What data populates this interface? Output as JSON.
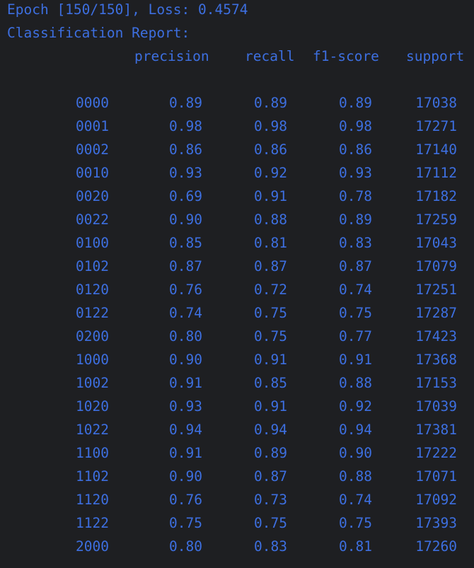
{
  "console": {
    "epoch_line": "Epoch [150/150], Loss: 0.4574",
    "report_title": "Classification Report:",
    "headers": {
      "precision": "precision",
      "recall": "recall",
      "f1": "f1-score",
      "support": "support"
    },
    "rows": [
      {
        "label": "0000",
        "precision": "0.89",
        "recall": "0.89",
        "f1": "0.89",
        "support": "17038"
      },
      {
        "label": "0001",
        "precision": "0.98",
        "recall": "0.98",
        "f1": "0.98",
        "support": "17271"
      },
      {
        "label": "0002",
        "precision": "0.86",
        "recall": "0.86",
        "f1": "0.86",
        "support": "17140"
      },
      {
        "label": "0010",
        "precision": "0.93",
        "recall": "0.92",
        "f1": "0.93",
        "support": "17112"
      },
      {
        "label": "0020",
        "precision": "0.69",
        "recall": "0.91",
        "f1": "0.78",
        "support": "17182"
      },
      {
        "label": "0022",
        "precision": "0.90",
        "recall": "0.88",
        "f1": "0.89",
        "support": "17259"
      },
      {
        "label": "0100",
        "precision": "0.85",
        "recall": "0.81",
        "f1": "0.83",
        "support": "17043"
      },
      {
        "label": "0102",
        "precision": "0.87",
        "recall": "0.87",
        "f1": "0.87",
        "support": "17079"
      },
      {
        "label": "0120",
        "precision": "0.76",
        "recall": "0.72",
        "f1": "0.74",
        "support": "17251"
      },
      {
        "label": "0122",
        "precision": "0.74",
        "recall": "0.75",
        "f1": "0.75",
        "support": "17287"
      },
      {
        "label": "0200",
        "precision": "0.80",
        "recall": "0.75",
        "f1": "0.77",
        "support": "17423"
      },
      {
        "label": "1000",
        "precision": "0.90",
        "recall": "0.91",
        "f1": "0.91",
        "support": "17368"
      },
      {
        "label": "1002",
        "precision": "0.91",
        "recall": "0.85",
        "f1": "0.88",
        "support": "17153"
      },
      {
        "label": "1020",
        "precision": "0.93",
        "recall": "0.91",
        "f1": "0.92",
        "support": "17039"
      },
      {
        "label": "1022",
        "precision": "0.94",
        "recall": "0.94",
        "f1": "0.94",
        "support": "17381"
      },
      {
        "label": "1100",
        "precision": "0.91",
        "recall": "0.89",
        "f1": "0.90",
        "support": "17222"
      },
      {
        "label": "1102",
        "precision": "0.90",
        "recall": "0.87",
        "f1": "0.88",
        "support": "17071"
      },
      {
        "label": "1120",
        "precision": "0.76",
        "recall": "0.73",
        "f1": "0.74",
        "support": "17092"
      },
      {
        "label": "1122",
        "precision": "0.75",
        "recall": "0.75",
        "f1": "0.75",
        "support": "17393"
      },
      {
        "label": "2000",
        "precision": "0.80",
        "recall": "0.83",
        "f1": "0.81",
        "support": "17260"
      }
    ]
  }
}
